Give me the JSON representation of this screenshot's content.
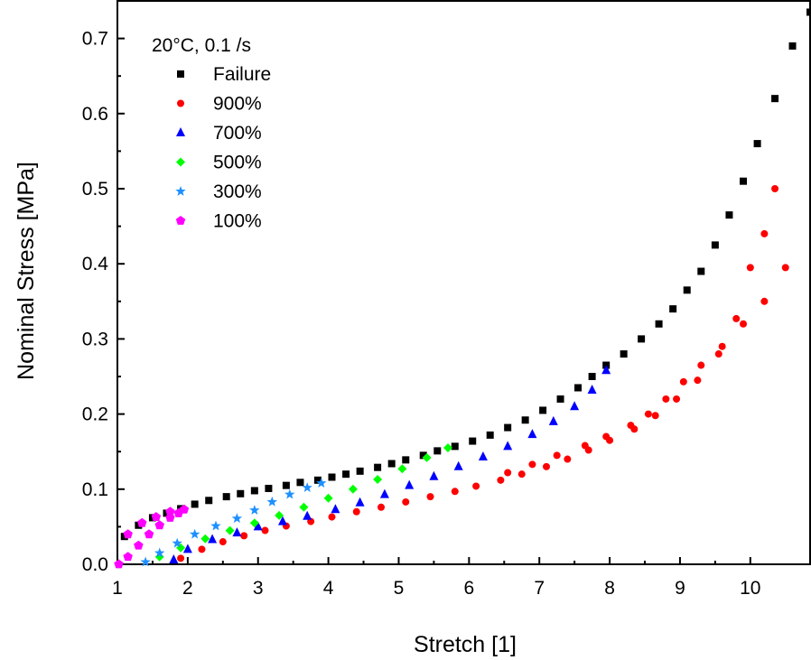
{
  "chart_data": {
    "type": "scatter",
    "title": "",
    "xlabel": "Stretch [1]",
    "ylabel": "Nominal Stress [MPa]",
    "xlim": [
      1,
      10.85
    ],
    "ylim": [
      0,
      0.75
    ],
    "xticks": [
      1,
      2,
      3,
      4,
      5,
      6,
      7,
      8,
      9,
      10
    ],
    "yticks": [
      0.0,
      0.1,
      0.2,
      0.3,
      0.4,
      0.5,
      0.6,
      0.7
    ],
    "ytick_labels": [
      "0.0",
      "0.1",
      "0.2",
      "0.3",
      "0.4",
      "0.5",
      "0.6",
      "0.7"
    ],
    "xtick_labels": [
      "1",
      "2",
      "3",
      "4",
      "5",
      "6",
      "7",
      "8",
      "9",
      "10"
    ],
    "grid": false,
    "legend_title": "20°C, 0.1 /s",
    "legend_position": "top-left",
    "series": [
      {
        "name": "Failure",
        "marker": "square",
        "color": "#000000",
        "points": [
          [
            1.1,
            0.037
          ],
          [
            1.3,
            0.052
          ],
          [
            1.5,
            0.062
          ],
          [
            1.7,
            0.068
          ],
          [
            1.9,
            0.074
          ],
          [
            2.1,
            0.08
          ],
          [
            2.3,
            0.085
          ],
          [
            2.55,
            0.09
          ],
          [
            2.75,
            0.094
          ],
          [
            2.95,
            0.098
          ],
          [
            3.15,
            0.101
          ],
          [
            3.4,
            0.105
          ],
          [
            3.6,
            0.109
          ],
          [
            3.85,
            0.112
          ],
          [
            4.05,
            0.116
          ],
          [
            4.25,
            0.12
          ],
          [
            4.45,
            0.124
          ],
          [
            4.7,
            0.129
          ],
          [
            4.9,
            0.134
          ],
          [
            5.1,
            0.139
          ],
          [
            5.35,
            0.145
          ],
          [
            5.55,
            0.151
          ],
          [
            5.8,
            0.157
          ],
          [
            6.05,
            0.164
          ],
          [
            6.3,
            0.172
          ],
          [
            6.55,
            0.182
          ],
          [
            6.8,
            0.192
          ],
          [
            7.05,
            0.205
          ],
          [
            7.3,
            0.22
          ],
          [
            7.55,
            0.235
          ],
          [
            7.75,
            0.25
          ],
          [
            7.95,
            0.265
          ],
          [
            8.2,
            0.28
          ],
          [
            8.45,
            0.3
          ],
          [
            8.7,
            0.32
          ],
          [
            8.9,
            0.34
          ],
          [
            9.1,
            0.365
          ],
          [
            9.3,
            0.39
          ],
          [
            9.5,
            0.425
          ],
          [
            9.7,
            0.465
          ],
          [
            9.9,
            0.51
          ],
          [
            10.1,
            0.56
          ],
          [
            10.35,
            0.62
          ],
          [
            10.6,
            0.69
          ],
          [
            10.85,
            0.735
          ]
        ]
      },
      {
        "name": "900%",
        "marker": "circle",
        "color": "#ff0000",
        "points": [
          [
            1.9,
            0.008
          ],
          [
            2.2,
            0.02
          ],
          [
            2.5,
            0.03
          ],
          [
            2.8,
            0.038
          ],
          [
            3.1,
            0.045
          ],
          [
            3.4,
            0.051
          ],
          [
            3.75,
            0.057
          ],
          [
            4.05,
            0.063
          ],
          [
            4.4,
            0.07
          ],
          [
            4.75,
            0.076
          ],
          [
            5.1,
            0.083
          ],
          [
            5.45,
            0.09
          ],
          [
            5.8,
            0.097
          ],
          [
            6.1,
            0.104
          ],
          [
            6.45,
            0.112
          ],
          [
            6.75,
            0.12
          ],
          [
            7.1,
            0.13
          ],
          [
            7.4,
            0.14
          ],
          [
            7.7,
            0.152
          ],
          [
            8.0,
            0.165
          ],
          [
            8.35,
            0.18
          ],
          [
            8.65,
            0.198
          ],
          [
            8.95,
            0.22
          ],
          [
            9.25,
            0.245
          ],
          [
            9.55,
            0.28
          ],
          [
            9.8,
            0.327
          ],
          [
            10.0,
            0.395
          ],
          [
            10.2,
            0.44
          ],
          [
            10.35,
            0.5
          ],
          [
            10.5,
            0.395
          ],
          [
            10.2,
            0.35
          ],
          [
            9.9,
            0.32
          ],
          [
            9.6,
            0.29
          ],
          [
            9.3,
            0.265
          ],
          [
            9.05,
            0.243
          ],
          [
            8.8,
            0.22
          ],
          [
            8.55,
            0.2
          ],
          [
            8.3,
            0.185
          ],
          [
            7.95,
            0.17
          ],
          [
            7.65,
            0.158
          ],
          [
            7.25,
            0.145
          ],
          [
            6.9,
            0.133
          ],
          [
            6.55,
            0.122
          ]
        ]
      },
      {
        "name": "700%",
        "marker": "triangle",
        "color": "#0000ff",
        "points": [
          [
            1.8,
            0.006
          ],
          [
            2.0,
            0.02
          ],
          [
            2.35,
            0.033
          ],
          [
            2.7,
            0.042
          ],
          [
            3.0,
            0.05
          ],
          [
            3.35,
            0.057
          ],
          [
            3.7,
            0.064
          ],
          [
            4.1,
            0.073
          ],
          [
            4.45,
            0.082
          ],
          [
            4.8,
            0.093
          ],
          [
            5.15,
            0.105
          ],
          [
            5.5,
            0.117
          ],
          [
            5.85,
            0.13
          ],
          [
            6.2,
            0.143
          ],
          [
            6.55,
            0.157
          ],
          [
            6.9,
            0.173
          ],
          [
            7.2,
            0.19
          ],
          [
            7.5,
            0.21
          ],
          [
            7.75,
            0.232
          ],
          [
            7.95,
            0.258
          ]
        ]
      },
      {
        "name": "500%",
        "marker": "diamond",
        "color": "#00ff00",
        "points": [
          [
            1.6,
            0.01
          ],
          [
            1.9,
            0.022
          ],
          [
            2.25,
            0.034
          ],
          [
            2.6,
            0.045
          ],
          [
            2.95,
            0.055
          ],
          [
            3.3,
            0.065
          ],
          [
            3.65,
            0.076
          ],
          [
            4.0,
            0.088
          ],
          [
            4.35,
            0.1
          ],
          [
            4.7,
            0.113
          ],
          [
            5.05,
            0.127
          ],
          [
            5.4,
            0.142
          ],
          [
            5.7,
            0.155
          ]
        ]
      },
      {
        "name": "300%",
        "marker": "star",
        "color": "#1e90ff",
        "points": [
          [
            1.4,
            0.003
          ],
          [
            1.6,
            0.015
          ],
          [
            1.85,
            0.028
          ],
          [
            2.1,
            0.04
          ],
          [
            2.4,
            0.051
          ],
          [
            2.7,
            0.061
          ],
          [
            2.95,
            0.072
          ],
          [
            3.2,
            0.083
          ],
          [
            3.45,
            0.093
          ],
          [
            3.7,
            0.102
          ],
          [
            3.9,
            0.108
          ]
        ]
      },
      {
        "name": "100%",
        "marker": "pentagon",
        "color": "#ff00ff",
        "points": [
          [
            1.02,
            0.0
          ],
          [
            1.15,
            0.01
          ],
          [
            1.3,
            0.025
          ],
          [
            1.45,
            0.04
          ],
          [
            1.6,
            0.052
          ],
          [
            1.75,
            0.062
          ],
          [
            1.87,
            0.068
          ],
          [
            1.95,
            0.073
          ],
          [
            1.75,
            0.07
          ],
          [
            1.55,
            0.063
          ],
          [
            1.35,
            0.055
          ],
          [
            1.15,
            0.04
          ]
        ]
      }
    ]
  }
}
